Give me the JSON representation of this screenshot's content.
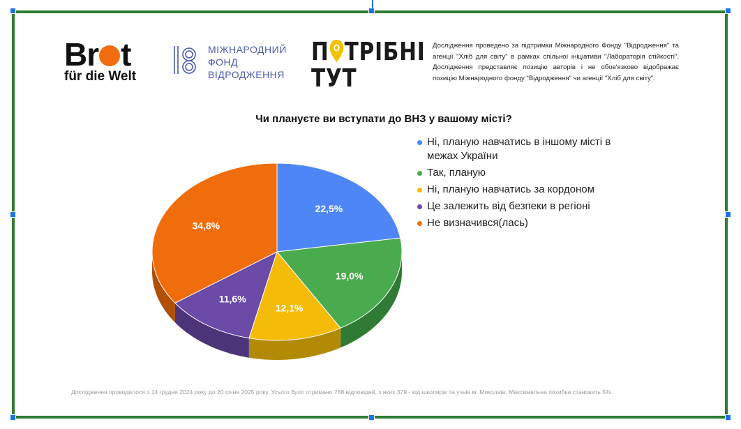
{
  "logos": {
    "brot": {
      "line1_a": "Br",
      "line1_b": "t",
      "line2": "für die Welt",
      "accent": "#f26d0f"
    },
    "mfv": {
      "line1": "МІЖНАРОДНИЙ",
      "line2": "ФОНД",
      "line3": "ВІДРОДЖЕННЯ",
      "color": "#4a5ba8"
    },
    "pt": {
      "line1_a": "П",
      "line1_b": "ТРІБНІ",
      "line2": "ТУТ",
      "accent": "#f2c200"
    }
  },
  "disclaimer": "Дослідження проведено за підтримки Міжнародного Фонду \"Відродження\" та агенції \"Хліб для світу\" в рамках спільної ініціативи \"Лабораторія стійкості\". Дослідження представляє позицію авторів і не обов'язково відображає позицію Міжнародного фонду \"Відродження\" чи агенції \"Хліб для світу\".",
  "footnote": "Дослідження проводилося з 14 грудня 2024 року до 20 січня 2025 року. Усього було отримано 768 відповідей, з яких 379 - від школярів та учнів м. Миколаїв. Максимальна похибка становить 5%.",
  "chart_data": {
    "type": "pie",
    "title": "Чи плануєте ви вступати до ВНЗ у вашому місті?",
    "legend_position": "right",
    "slices": [
      {
        "label": "Ні, планую навчатись в іншому місті в межах України",
        "value": 22.5,
        "value_label": "22,5%",
        "color": "#4f86f7",
        "side_color": "#3a64b8"
      },
      {
        "label": "Так, планую",
        "value": 19.0,
        "value_label": "19,0%",
        "color": "#4aab4e",
        "side_color": "#2f7a34"
      },
      {
        "label": "Ні, планую навчатись за кордоном",
        "value": 12.1,
        "value_label": "12,1%",
        "color": "#f4bb08",
        "side_color": "#b38a05"
      },
      {
        "label": "Це залежить від безпеки в регіоні",
        "value": 11.6,
        "value_label": "11,6%",
        "color": "#6b4aa8",
        "side_color": "#4c3478"
      },
      {
        "label": "Не визначився(лась)",
        "value": 34.8,
        "value_label": "34,8%",
        "color": "#f06d0c",
        "side_color": "#b14f07"
      }
    ]
  }
}
